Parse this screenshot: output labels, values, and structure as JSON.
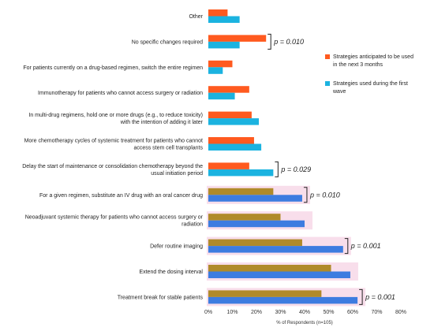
{
  "chart_data": {
    "type": "bar",
    "orientation": "horizontal",
    "categories": [
      [
        "Other"
      ],
      [
        "No specific changes required"
      ],
      [
        "For patients currently on a drug-based regimen, switch the entire regimen"
      ],
      [
        "Immunotherapy for patients who cannot access surgery or radiation"
      ],
      [
        "In multi-drug regimens, hold one or more drugs (e.g., to reduce toxicity)",
        "with the intention of adding it later"
      ],
      [
        "More chemotherapy cycles of systemic treatment  for patients who cannot",
        "access stem cell transplants"
      ],
      [
        "Delay the start of maintenance or consolidation chemotherapy beyond the",
        "usual initiation period"
      ],
      [
        "For a given regimen, substitute an IV drug with an oral cancer drug"
      ],
      [
        "Neoadjuvant systemic therapy for patients who cannot access surgery or",
        "radiation"
      ],
      [
        "Defer routine imaging"
      ],
      [
        "Extend the dosing interval"
      ],
      [
        "Treatment break for stable patients"
      ]
    ],
    "series": [
      {
        "name": "Strategies anticipated to be used in the next 3 months",
        "color": "#ff5a1f",
        "values": [
          8,
          24,
          10,
          17,
          18,
          19,
          17,
          27,
          30,
          39,
          51,
          47
        ]
      },
      {
        "name": "Strategies used during the first wave",
        "color": "#1bb3e0",
        "values": [
          13,
          13,
          6,
          11,
          21,
          22,
          27,
          39,
          40,
          56,
          59,
          62
        ]
      }
    ],
    "xlabel_parts": [
      "% of Respondents (",
      "n",
      "=105)"
    ],
    "xlim": [
      0,
      80
    ],
    "xticks": [
      "0%",
      "10%",
      "20%",
      "30%",
      "40%",
      "50%",
      "60%",
      "70%",
      "80%"
    ],
    "grid": false,
    "legend_position": "right",
    "highlighted_categories": [
      7,
      8,
      9,
      10,
      11
    ],
    "highlight_colors": {
      "anticipated": "#b08a2a",
      "first_wave": "#3d7ce0"
    },
    "annotations": [
      {
        "categories": [
          1
        ],
        "text": "p = 0.010"
      },
      {
        "categories": [
          6
        ],
        "text": "p = 0.029"
      },
      {
        "categories": [
          7
        ],
        "text": "p = 0.010"
      },
      {
        "categories": [
          9
        ],
        "text": "p = 0.001"
      },
      {
        "categories": [
          11
        ],
        "text": "p = 0.001"
      }
    ]
  }
}
